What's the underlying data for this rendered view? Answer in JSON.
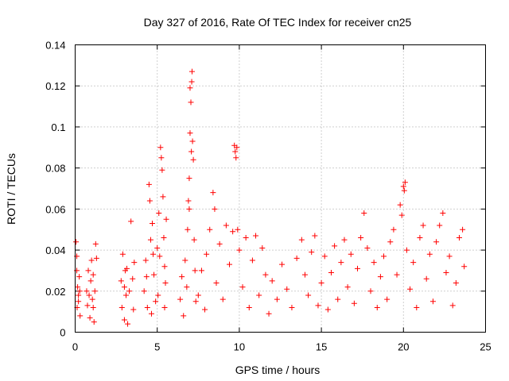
{
  "chart_data": {
    "type": "scatter",
    "title": "Day 327 of 2016, Rate Of TEC Index for receiver cn25",
    "xlabel": "GPS time / hours",
    "ylabel": "ROTI / TECUs",
    "xlim": [
      0,
      25
    ],
    "ylim": [
      0,
      0.14
    ],
    "xticks": [
      0,
      5,
      10,
      15,
      20,
      25
    ],
    "yticks": [
      0,
      0.02,
      0.04,
      0.06,
      0.08,
      0.1,
      0.12,
      0.14
    ],
    "grid": true,
    "marker": "+",
    "series": [
      {
        "name": "ROTI",
        "color": "#ff0000",
        "points": [
          [
            0.05,
            0.044
          ],
          [
            0.1,
            0.03
          ],
          [
            0.12,
            0.012
          ],
          [
            0.15,
            0.022
          ],
          [
            0.2,
            0.018
          ],
          [
            0.25,
            0.027
          ],
          [
            0.3,
            0.008
          ],
          [
            0.1,
            0.037
          ],
          [
            0.2,
            0.015
          ],
          [
            0.28,
            0.02
          ],
          [
            0.7,
            0.02
          ],
          [
            0.75,
            0.013
          ],
          [
            0.8,
            0.03
          ],
          [
            0.9,
            0.007
          ],
          [
            0.95,
            0.025
          ],
          [
            1.0,
            0.035
          ],
          [
            1.05,
            0.016
          ],
          [
            1.1,
            0.028
          ],
          [
            1.15,
            0.005
          ],
          [
            1.2,
            0.02
          ],
          [
            1.25,
            0.043
          ],
          [
            1.3,
            0.036
          ],
          [
            1.1,
            0.012
          ],
          [
            0.85,
            0.018
          ],
          [
            2.8,
            0.025
          ],
          [
            2.85,
            0.012
          ],
          [
            2.9,
            0.038
          ],
          [
            3.0,
            0.006
          ],
          [
            3.05,
            0.03
          ],
          [
            3.1,
            0.018
          ],
          [
            3.2,
            0.004
          ],
          [
            3.3,
            0.02
          ],
          [
            3.4,
            0.054
          ],
          [
            3.5,
            0.026
          ],
          [
            3.55,
            0.011
          ],
          [
            3.6,
            0.034
          ],
          [
            3.0,
            0.022
          ],
          [
            3.15,
            0.031
          ],
          [
            4.2,
            0.02
          ],
          [
            4.3,
            0.035
          ],
          [
            4.4,
            0.012
          ],
          [
            4.5,
            0.072
          ],
          [
            4.55,
            0.064
          ],
          [
            4.6,
            0.045
          ],
          [
            4.7,
            0.053
          ],
          [
            4.8,
            0.028
          ],
          [
            4.9,
            0.015
          ],
          [
            5.0,
            0.041
          ],
          [
            5.1,
            0.058
          ],
          [
            5.2,
            0.09
          ],
          [
            5.25,
            0.085
          ],
          [
            5.3,
            0.079
          ],
          [
            5.35,
            0.066
          ],
          [
            5.4,
            0.046
          ],
          [
            5.45,
            0.032
          ],
          [
            5.5,
            0.024
          ],
          [
            5.55,
            0.055
          ],
          [
            4.65,
            0.009
          ],
          [
            5.05,
            0.018
          ],
          [
            5.15,
            0.037
          ],
          [
            4.35,
            0.027
          ],
          [
            4.75,
            0.038
          ],
          [
            5.45,
            0.012
          ],
          [
            6.4,
            0.016
          ],
          [
            6.5,
            0.027
          ],
          [
            6.6,
            0.008
          ],
          [
            6.7,
            0.035
          ],
          [
            6.8,
            0.022
          ],
          [
            6.85,
            0.05
          ],
          [
            6.9,
            0.064
          ],
          [
            6.95,
            0.075
          ],
          [
            7.0,
            0.097
          ],
          [
            7.05,
            0.112
          ],
          [
            7.1,
            0.122
          ],
          [
            7.12,
            0.127
          ],
          [
            7.15,
            0.093
          ],
          [
            7.2,
            0.084
          ],
          [
            7.25,
            0.045
          ],
          [
            7.3,
            0.03
          ],
          [
            7.0,
            0.119
          ],
          [
            7.08,
            0.088
          ],
          [
            6.95,
            0.06
          ],
          [
            7.35,
            0.015
          ],
          [
            7.5,
            0.018
          ],
          [
            7.7,
            0.03
          ],
          [
            7.9,
            0.011
          ],
          [
            8.0,
            0.038
          ],
          [
            8.2,
            0.05
          ],
          [
            8.4,
            0.068
          ],
          [
            8.5,
            0.06
          ],
          [
            8.6,
            0.024
          ],
          [
            8.8,
            0.043
          ],
          [
            9.0,
            0.016
          ],
          [
            9.2,
            0.052
          ],
          [
            9.4,
            0.033
          ],
          [
            9.6,
            0.049
          ],
          [
            9.7,
            0.091
          ],
          [
            9.75,
            0.088
          ],
          [
            9.8,
            0.085
          ],
          [
            9.85,
            0.09
          ],
          [
            9.9,
            0.05
          ],
          [
            10.0,
            0.04
          ],
          [
            10.2,
            0.022
          ],
          [
            10.4,
            0.046
          ],
          [
            10.6,
            0.012
          ],
          [
            10.8,
            0.035
          ],
          [
            11.0,
            0.047
          ],
          [
            11.2,
            0.018
          ],
          [
            11.4,
            0.041
          ],
          [
            11.6,
            0.028
          ],
          [
            11.8,
            0.009
          ],
          [
            12.0,
            0.025
          ],
          [
            12.3,
            0.016
          ],
          [
            12.6,
            0.033
          ],
          [
            12.9,
            0.021
          ],
          [
            13.2,
            0.012
          ],
          [
            13.5,
            0.036
          ],
          [
            13.8,
            0.045
          ],
          [
            14.0,
            0.028
          ],
          [
            14.2,
            0.018
          ],
          [
            14.4,
            0.039
          ],
          [
            14.6,
            0.047
          ],
          [
            14.8,
            0.013
          ],
          [
            15.0,
            0.024
          ],
          [
            15.2,
            0.037
          ],
          [
            15.4,
            0.011
          ],
          [
            15.6,
            0.029
          ],
          [
            15.8,
            0.042
          ],
          [
            16.0,
            0.016
          ],
          [
            16.2,
            0.034
          ],
          [
            16.4,
            0.045
          ],
          [
            16.6,
            0.022
          ],
          [
            16.8,
            0.038
          ],
          [
            17.0,
            0.014
          ],
          [
            17.2,
            0.031
          ],
          [
            17.4,
            0.046
          ],
          [
            17.6,
            0.058
          ],
          [
            17.8,
            0.041
          ],
          [
            18.0,
            0.02
          ],
          [
            18.2,
            0.034
          ],
          [
            18.4,
            0.012
          ],
          [
            18.6,
            0.027
          ],
          [
            18.8,
            0.037
          ],
          [
            19.0,
            0.016
          ],
          [
            19.2,
            0.044
          ],
          [
            19.4,
            0.05
          ],
          [
            19.6,
            0.028
          ],
          [
            19.8,
            0.062
          ],
          [
            19.9,
            0.057
          ],
          [
            20.0,
            0.071
          ],
          [
            20.05,
            0.069
          ],
          [
            20.1,
            0.073
          ],
          [
            20.2,
            0.04
          ],
          [
            20.4,
            0.021
          ],
          [
            20.6,
            0.034
          ],
          [
            20.8,
            0.012
          ],
          [
            21.0,
            0.046
          ],
          [
            21.2,
            0.052
          ],
          [
            21.4,
            0.026
          ],
          [
            21.6,
            0.038
          ],
          [
            21.8,
            0.015
          ],
          [
            22.0,
            0.044
          ],
          [
            22.2,
            0.052
          ],
          [
            22.4,
            0.058
          ],
          [
            22.6,
            0.029
          ],
          [
            22.8,
            0.037
          ],
          [
            23.0,
            0.013
          ],
          [
            23.2,
            0.024
          ],
          [
            23.4,
            0.046
          ],
          [
            23.6,
            0.05
          ],
          [
            23.7,
            0.032
          ]
        ]
      }
    ]
  }
}
